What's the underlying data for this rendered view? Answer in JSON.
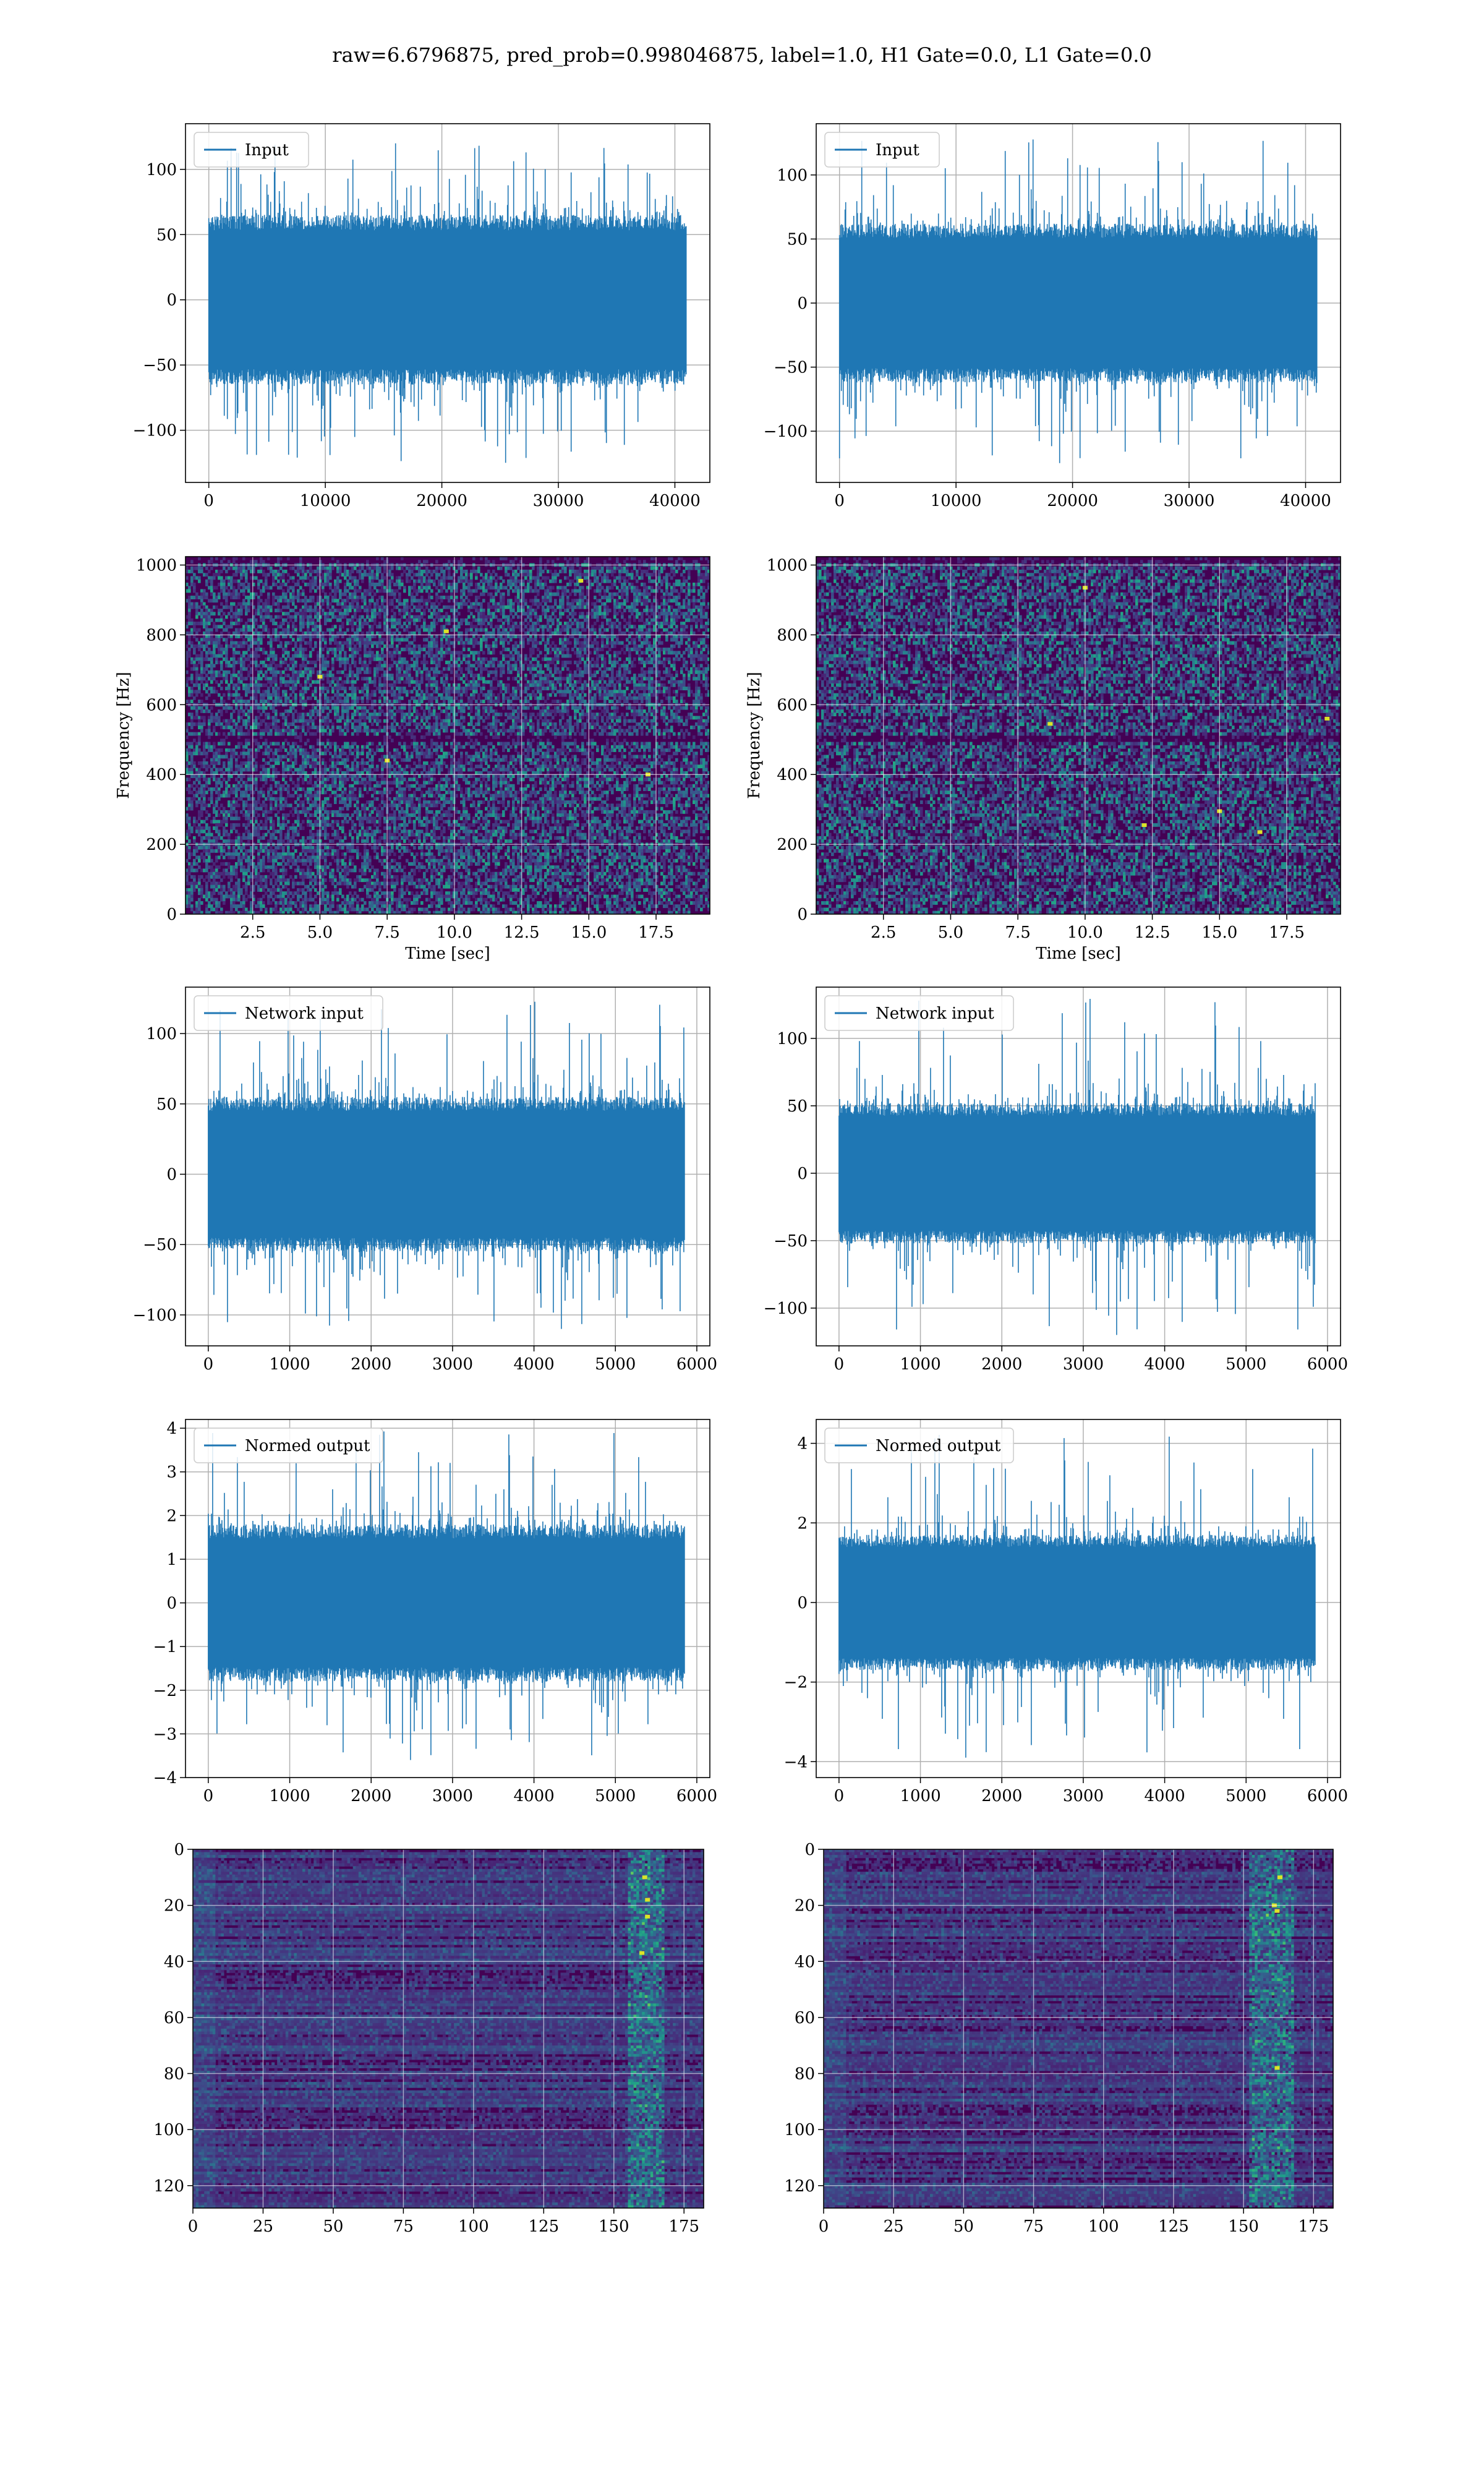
{
  "title": "raw=6.6796875, pred_prob=0.998046875, label=1.0, H1 Gate=0.0, L1 Gate=0.0",
  "colors": {
    "series": "#1f77b4",
    "grid": "#b0b0b0",
    "spec_bg": "#3a1f6b"
  },
  "chart_data": [
    {
      "type": "line",
      "panel": "row1-left",
      "series": [
        {
          "name": "Input"
        }
      ],
      "xlim": [
        -2000,
        43000
      ],
      "ylim": [
        -140,
        135
      ],
      "xticks": [
        0,
        10000,
        20000,
        30000,
        40000
      ],
      "xtick_labels": [
        "0",
        "10000",
        "20000",
        "30000",
        "40000"
      ],
      "yticks": [
        -100,
        -50,
        0,
        50,
        100
      ],
      "ytick_labels": [
        "−100",
        "−50",
        "0",
        "50",
        "100"
      ],
      "n_samples": 40960,
      "x_end": 40960,
      "amp": {
        "band_max": 65,
        "band_min": -65,
        "peak_max": 120,
        "peak_min": -125
      },
      "grid": true,
      "legend": "upper-left"
    },
    {
      "type": "line",
      "panel": "row1-right",
      "series": [
        {
          "name": "Input"
        }
      ],
      "xlim": [
        -2000,
        43000
      ],
      "ylim": [
        -140,
        140
      ],
      "xticks": [
        0,
        10000,
        20000,
        30000,
        40000
      ],
      "xtick_labels": [
        "0",
        "10000",
        "20000",
        "30000",
        "40000"
      ],
      "yticks": [
        -100,
        -50,
        0,
        50,
        100
      ],
      "ytick_labels": [
        "−100",
        "−50",
        "0",
        "50",
        "100"
      ],
      "n_samples": 40960,
      "x_end": 40960,
      "amp": {
        "band_max": 62,
        "band_min": -62,
        "peak_max": 130,
        "peak_min": -125
      },
      "grid": true,
      "legend": "upper-left"
    },
    {
      "type": "heatmap",
      "panel": "row2-left",
      "xlim": [
        0,
        19.5
      ],
      "ylim": [
        0,
        1024
      ],
      "xticks": [
        2.5,
        5.0,
        7.5,
        10.0,
        12.5,
        15.0,
        17.5
      ],
      "xtick_labels": [
        "2.5",
        "5.0",
        "7.5",
        "10.0",
        "12.5",
        "15.0",
        "17.5"
      ],
      "yticks": [
        0,
        200,
        400,
        600,
        800,
        1000
      ],
      "ytick_labels": [
        "0",
        "200",
        "400",
        "600",
        "800",
        "1000"
      ],
      "xlabel": "Time [sec]",
      "ylabel": "Frequency [Hz]",
      "grid": true,
      "colormap": "viridis",
      "dark_band_hz": [
        490,
        510
      ],
      "bright_spots": [
        [
          5.0,
          680
        ],
        [
          7.5,
          440
        ],
        [
          9.7,
          810
        ],
        [
          17.2,
          400
        ],
        [
          14.7,
          955
        ]
      ]
    },
    {
      "type": "heatmap",
      "panel": "row2-right",
      "xlim": [
        0,
        19.5
      ],
      "ylim": [
        0,
        1024
      ],
      "xticks": [
        2.5,
        5.0,
        7.5,
        10.0,
        12.5,
        15.0,
        17.5
      ],
      "xtick_labels": [
        "2.5",
        "5.0",
        "7.5",
        "10.0",
        "12.5",
        "15.0",
        "17.5"
      ],
      "yticks": [
        0,
        200,
        400,
        600,
        800,
        1000
      ],
      "ytick_labels": [
        "0",
        "200",
        "400",
        "600",
        "800",
        "1000"
      ],
      "xlabel": "Time [sec]",
      "ylabel": "Frequency [Hz]",
      "grid": true,
      "colormap": "viridis",
      "dark_band_hz": [
        490,
        510
      ],
      "bright_spots": [
        [
          12.2,
          255
        ],
        [
          15.0,
          295
        ],
        [
          16.5,
          235
        ],
        [
          8.7,
          545
        ],
        [
          10.0,
          935
        ],
        [
          19.0,
          560
        ]
      ]
    },
    {
      "type": "line",
      "panel": "row3-left",
      "series": [
        {
          "name": "Network input"
        }
      ],
      "xlim": [
        -280,
        6160
      ],
      "ylim": [
        -122,
        133
      ],
      "xticks": [
        0,
        1000,
        2000,
        3000,
        4000,
        5000,
        6000
      ],
      "xtick_labels": [
        "0",
        "1000",
        "2000",
        "3000",
        "4000",
        "5000",
        "6000"
      ],
      "yticks": [
        -100,
        -50,
        0,
        50,
        100
      ],
      "ytick_labels": [
        "−100",
        "−50",
        "0",
        "50",
        "100"
      ],
      "n_samples": 5850,
      "x_end": 5850,
      "amp": {
        "band_max": 55,
        "band_min": -55,
        "peak_max": 125,
        "peak_min": -110
      },
      "grid": true,
      "legend": "upper-left"
    },
    {
      "type": "line",
      "panel": "row3-right",
      "series": [
        {
          "name": "Network input"
        }
      ],
      "xlim": [
        -280,
        6160
      ],
      "ylim": [
        -128,
        138
      ],
      "xticks": [
        0,
        1000,
        2000,
        3000,
        4000,
        5000,
        6000
      ],
      "xtick_labels": [
        "0",
        "1000",
        "2000",
        "3000",
        "4000",
        "5000",
        "6000"
      ],
      "yticks": [
        -100,
        -50,
        0,
        50,
        100
      ],
      "ytick_labels": [
        "−100",
        "−50",
        "0",
        "50",
        "100"
      ],
      "n_samples": 5850,
      "x_end": 5850,
      "amp": {
        "band_max": 52,
        "band_min": -52,
        "peak_max": 132,
        "peak_min": -120
      },
      "grid": true,
      "legend": "upper-left"
    },
    {
      "type": "line",
      "panel": "row4-left",
      "series": [
        {
          "name": "Normed output"
        }
      ],
      "xlim": [
        -280,
        6160
      ],
      "ylim": [
        -4.0,
        4.2
      ],
      "xticks": [
        0,
        1000,
        2000,
        3000,
        4000,
        5000,
        6000
      ],
      "xtick_labels": [
        "0",
        "1000",
        "2000",
        "3000",
        "4000",
        "5000",
        "6000"
      ],
      "yticks": [
        -4,
        -3,
        -2,
        -1,
        0,
        1,
        2,
        3,
        4
      ],
      "ytick_labels": [
        "−4",
        "−3",
        "−2",
        "−1",
        "0",
        "1",
        "2",
        "3",
        "4"
      ],
      "n_samples": 5850,
      "x_end": 5850,
      "amp": {
        "band_max": 1.8,
        "band_min": -1.8,
        "peak_max": 4.0,
        "peak_min": -3.6
      },
      "grid": true,
      "legend": "upper-left"
    },
    {
      "type": "line",
      "panel": "row4-right",
      "series": [
        {
          "name": "Normed output"
        }
      ],
      "xlim": [
        -280,
        6160
      ],
      "ylim": [
        -4.4,
        4.6
      ],
      "xticks": [
        0,
        1000,
        2000,
        3000,
        4000,
        5000,
        6000
      ],
      "xtick_labels": [
        "0",
        "1000",
        "2000",
        "3000",
        "4000",
        "5000",
        "6000"
      ],
      "yticks": [
        -4,
        -2,
        0,
        2,
        4
      ],
      "ytick_labels": [
        "−4",
        "−2",
        "0",
        "2",
        "4"
      ],
      "n_samples": 5850,
      "x_end": 5850,
      "amp": {
        "band_max": 1.7,
        "band_min": -1.7,
        "peak_max": 4.3,
        "peak_min": -3.9
      },
      "grid": true,
      "legend": "upper-left"
    },
    {
      "type": "heatmap",
      "panel": "row5-left",
      "xlim": [
        0,
        182
      ],
      "ylim": [
        128,
        0
      ],
      "xticks": [
        0,
        25,
        50,
        75,
        100,
        125,
        150,
        175
      ],
      "xtick_labels": [
        "0",
        "25",
        "50",
        "75",
        "100",
        "125",
        "150",
        "175"
      ],
      "yticks": [
        0,
        20,
        40,
        60,
        80,
        100,
        120
      ],
      "ytick_labels": [
        "0",
        "20",
        "40",
        "60",
        "80",
        "100",
        "120"
      ],
      "grid": true,
      "colormap": "viridis",
      "active_band_cols": [
        155,
        168
      ],
      "bright_cells": [
        [
          162,
          24
        ],
        [
          161,
          10
        ],
        [
          160,
          37
        ],
        [
          162,
          18
        ]
      ]
    },
    {
      "type": "heatmap",
      "panel": "row5-right",
      "xlim": [
        0,
        182
      ],
      "ylim": [
        128,
        0
      ],
      "xticks": [
        0,
        25,
        50,
        75,
        100,
        125,
        150,
        175
      ],
      "xtick_labels": [
        "0",
        "25",
        "50",
        "75",
        "100",
        "125",
        "150",
        "175"
      ],
      "yticks": [
        0,
        20,
        40,
        60,
        80,
        100,
        120
      ],
      "ytick_labels": [
        "0",
        "20",
        "40",
        "60",
        "80",
        "100",
        "120"
      ],
      "grid": true,
      "colormap": "viridis",
      "active_band_cols": [
        152,
        168
      ],
      "bright_cells": [
        [
          161,
          20
        ],
        [
          162,
          22
        ],
        [
          163,
          10
        ],
        [
          162,
          78
        ]
      ]
    }
  ]
}
